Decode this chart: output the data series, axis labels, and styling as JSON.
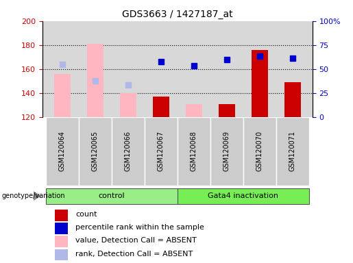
{
  "title": "GDS3663 / 1427187_at",
  "samples": [
    "GSM120064",
    "GSM120065",
    "GSM120066",
    "GSM120067",
    "GSM120068",
    "GSM120069",
    "GSM120070",
    "GSM120071"
  ],
  "ylim_left": [
    120,
    200
  ],
  "ylim_right": [
    0,
    100
  ],
  "yticks_left": [
    120,
    140,
    160,
    180,
    200
  ],
  "yticks_right": [
    0,
    25,
    50,
    75,
    100
  ],
  "yticklabels_right": [
    "0",
    "25",
    "50",
    "75",
    "100%"
  ],
  "count_color": "#cc0000",
  "absent_value_color": "#ffb6c1",
  "absent_rank_color": "#b0b8e8",
  "percentile_color": "#0000cc",
  "count": [
    null,
    null,
    null,
    137,
    null,
    131,
    176,
    149
  ],
  "value_absent": [
    156,
    181,
    140,
    null,
    131,
    null,
    null,
    null
  ],
  "rank_absent": [
    164,
    150,
    147,
    null,
    163,
    null,
    null,
    null
  ],
  "percentile": [
    null,
    null,
    null,
    166,
    163,
    168,
    171,
    169
  ],
  "legend_items": [
    {
      "label": "count",
      "color": "#cc0000"
    },
    {
      "label": "percentile rank within the sample",
      "color": "#0000cc"
    },
    {
      "label": "value, Detection Call = ABSENT",
      "color": "#ffb6c1"
    },
    {
      "label": "rank, Detection Call = ABSENT",
      "color": "#b0b8e8"
    }
  ],
  "background_plot": "#d8d8d8",
  "background_fig": "#ffffff",
  "bar_width": 0.5,
  "marker_size": 6,
  "groups_info": [
    {
      "label": "control",
      "start": 0,
      "end": 4,
      "color": "#99ee88"
    },
    {
      "label": "Gata4 inactivation",
      "start": 4,
      "end": 8,
      "color": "#77ee55"
    }
  ]
}
